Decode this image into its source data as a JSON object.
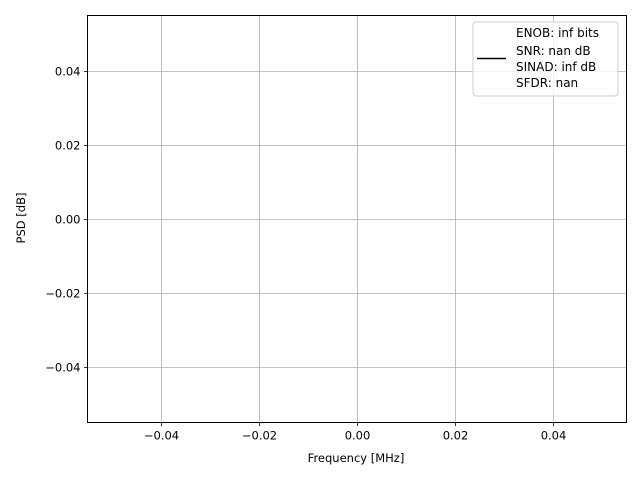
{
  "chart_data": {
    "type": "line",
    "title": "",
    "xlabel": "Frequency [MHz]",
    "ylabel": "PSD [dB]",
    "xlim": [
      -0.055,
      0.055
    ],
    "ylim": [
      -0.055,
      0.055
    ],
    "xticks": [
      -0.04,
      -0.02,
      0.0,
      0.02,
      0.04
    ],
    "xtick_labels": [
      "−0.04",
      "−0.02",
      "0.00",
      "0.02",
      "0.04"
    ],
    "yticks": [
      -0.04,
      -0.02,
      0.0,
      0.02,
      0.04
    ],
    "ytick_labels": [
      "−0.04",
      "−0.02",
      "0.00",
      "0.02",
      "0.04"
    ],
    "grid": true,
    "legend_placement": "top-right",
    "series": [
      {
        "name": "ENOB: inf bits\nSNR: nan dB\nSINAD: inf dB\nSFDR: nan",
        "color": "#000000",
        "x": [],
        "y": []
      }
    ],
    "legend_lines": [
      "ENOB: inf bits",
      "SNR: nan dB",
      "SINAD: inf dB",
      "SFDR: nan"
    ]
  }
}
